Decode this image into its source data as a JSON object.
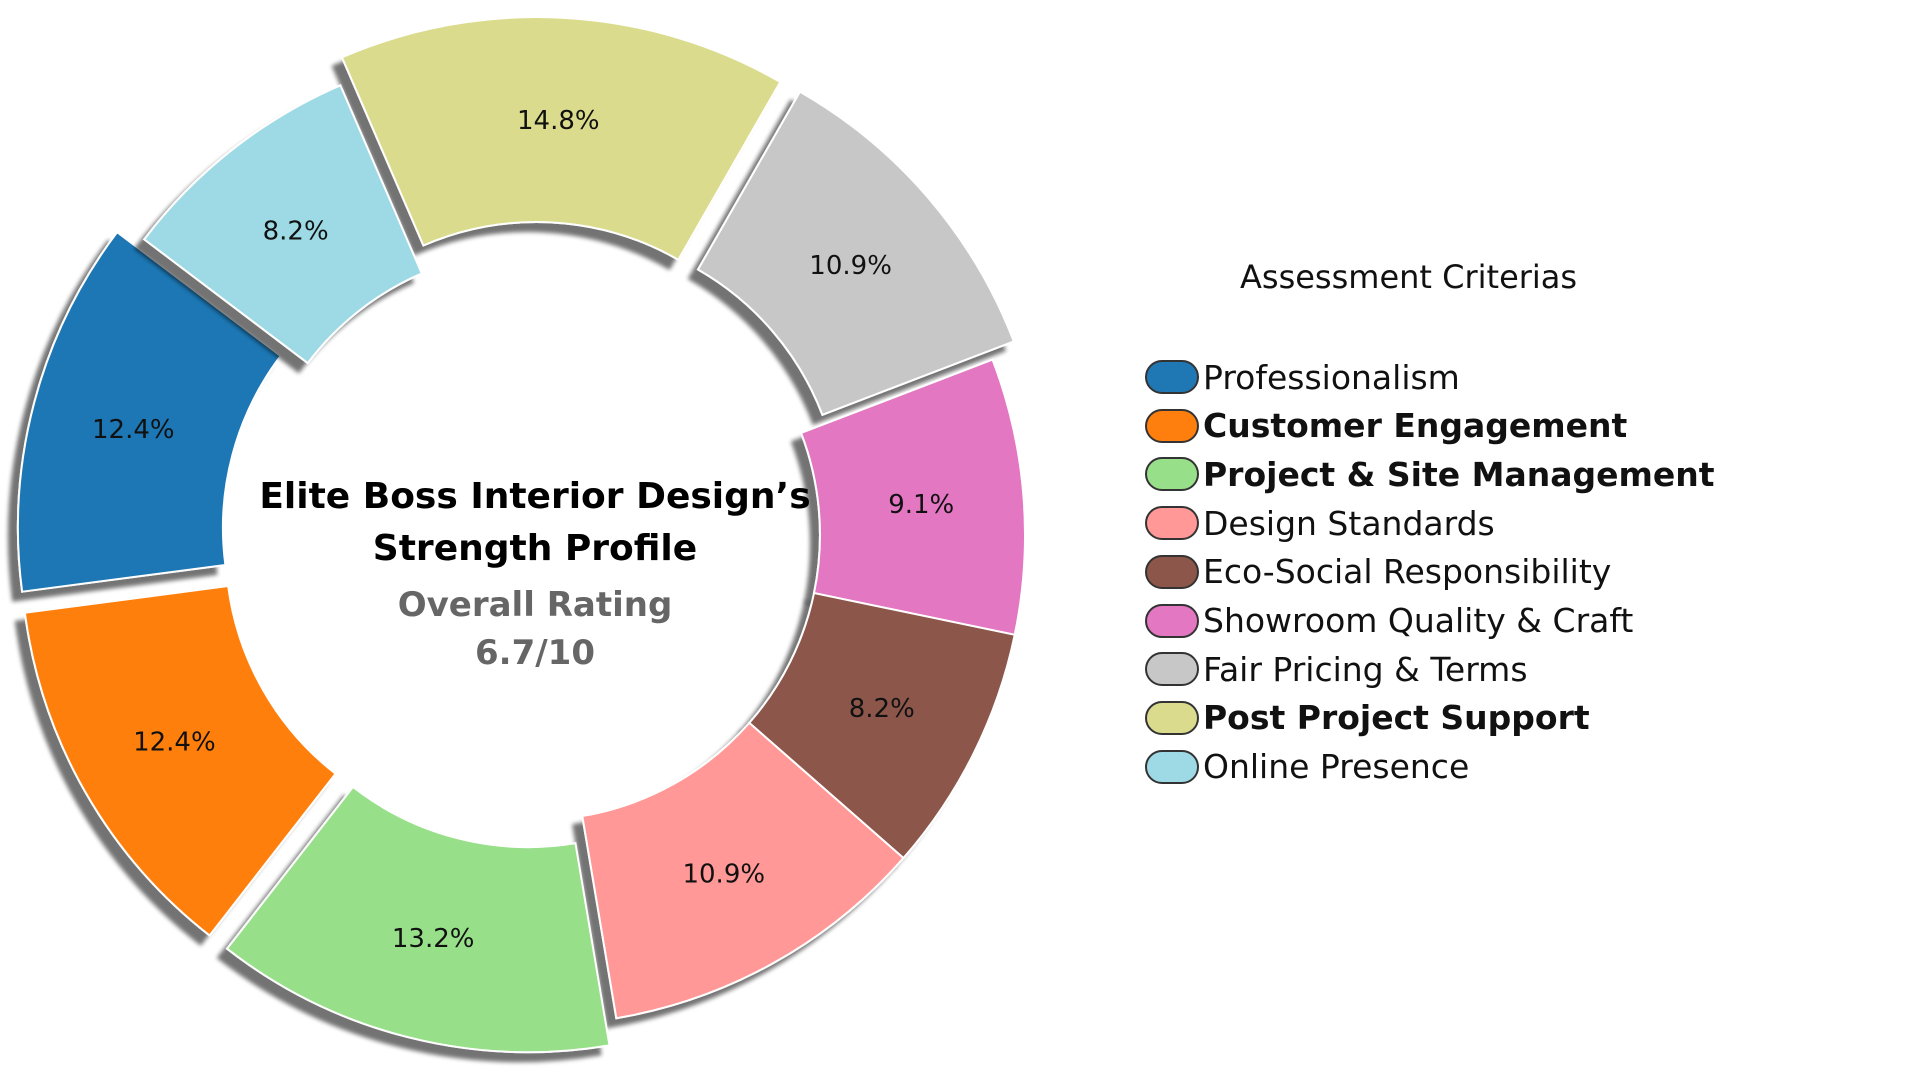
{
  "chart_data": {
    "type": "pie",
    "style": "donut-exploded",
    "title": "Elite Boss Interior Design’s Strength Profile",
    "subtitle_label": "Overall Rating",
    "subtitle_value": "6.7/10",
    "legend_title": "Assessment Criterias",
    "legend_placement": "right",
    "slices": [
      {
        "name": "Professionalism",
        "value": 12.4,
        "label": "12.4%",
        "color": "#1f77b4",
        "exploded": true,
        "bold": false
      },
      {
        "name": "Customer Engagement",
        "value": 12.4,
        "label": "12.4%",
        "color": "#ff7f0e",
        "exploded": true,
        "bold": true
      },
      {
        "name": "Project & Site Management",
        "value": 13.2,
        "label": "13.2%",
        "color": "#98df8a",
        "exploded": true,
        "bold": true
      },
      {
        "name": "Design Standards",
        "value": 10.9,
        "label": "10.9%",
        "color": "#ff9896",
        "exploded": false,
        "bold": false
      },
      {
        "name": "Eco-Social Responsibility",
        "value": 8.2,
        "label": "8.2%",
        "color": "#8c564b",
        "exploded": false,
        "bold": false
      },
      {
        "name": "Showroom Quality & Craft",
        "value": 9.1,
        "label": "9.1%",
        "color": "#e377c2",
        "exploded": false,
        "bold": false
      },
      {
        "name": "Fair Pricing & Terms",
        "value": 10.9,
        "label": "10.9%",
        "color": "#c7c7c7",
        "exploded": true,
        "bold": false
      },
      {
        "name": "Post Project Support",
        "value": 14.8,
        "label": "14.8%",
        "color": "#dbdb8d",
        "exploded": true,
        "bold": true
      },
      {
        "name": "Online Presence",
        "value": 8.2,
        "label": "8.2%",
        "color": "#9edae5",
        "exploded": false,
        "bold": false
      }
    ]
  }
}
